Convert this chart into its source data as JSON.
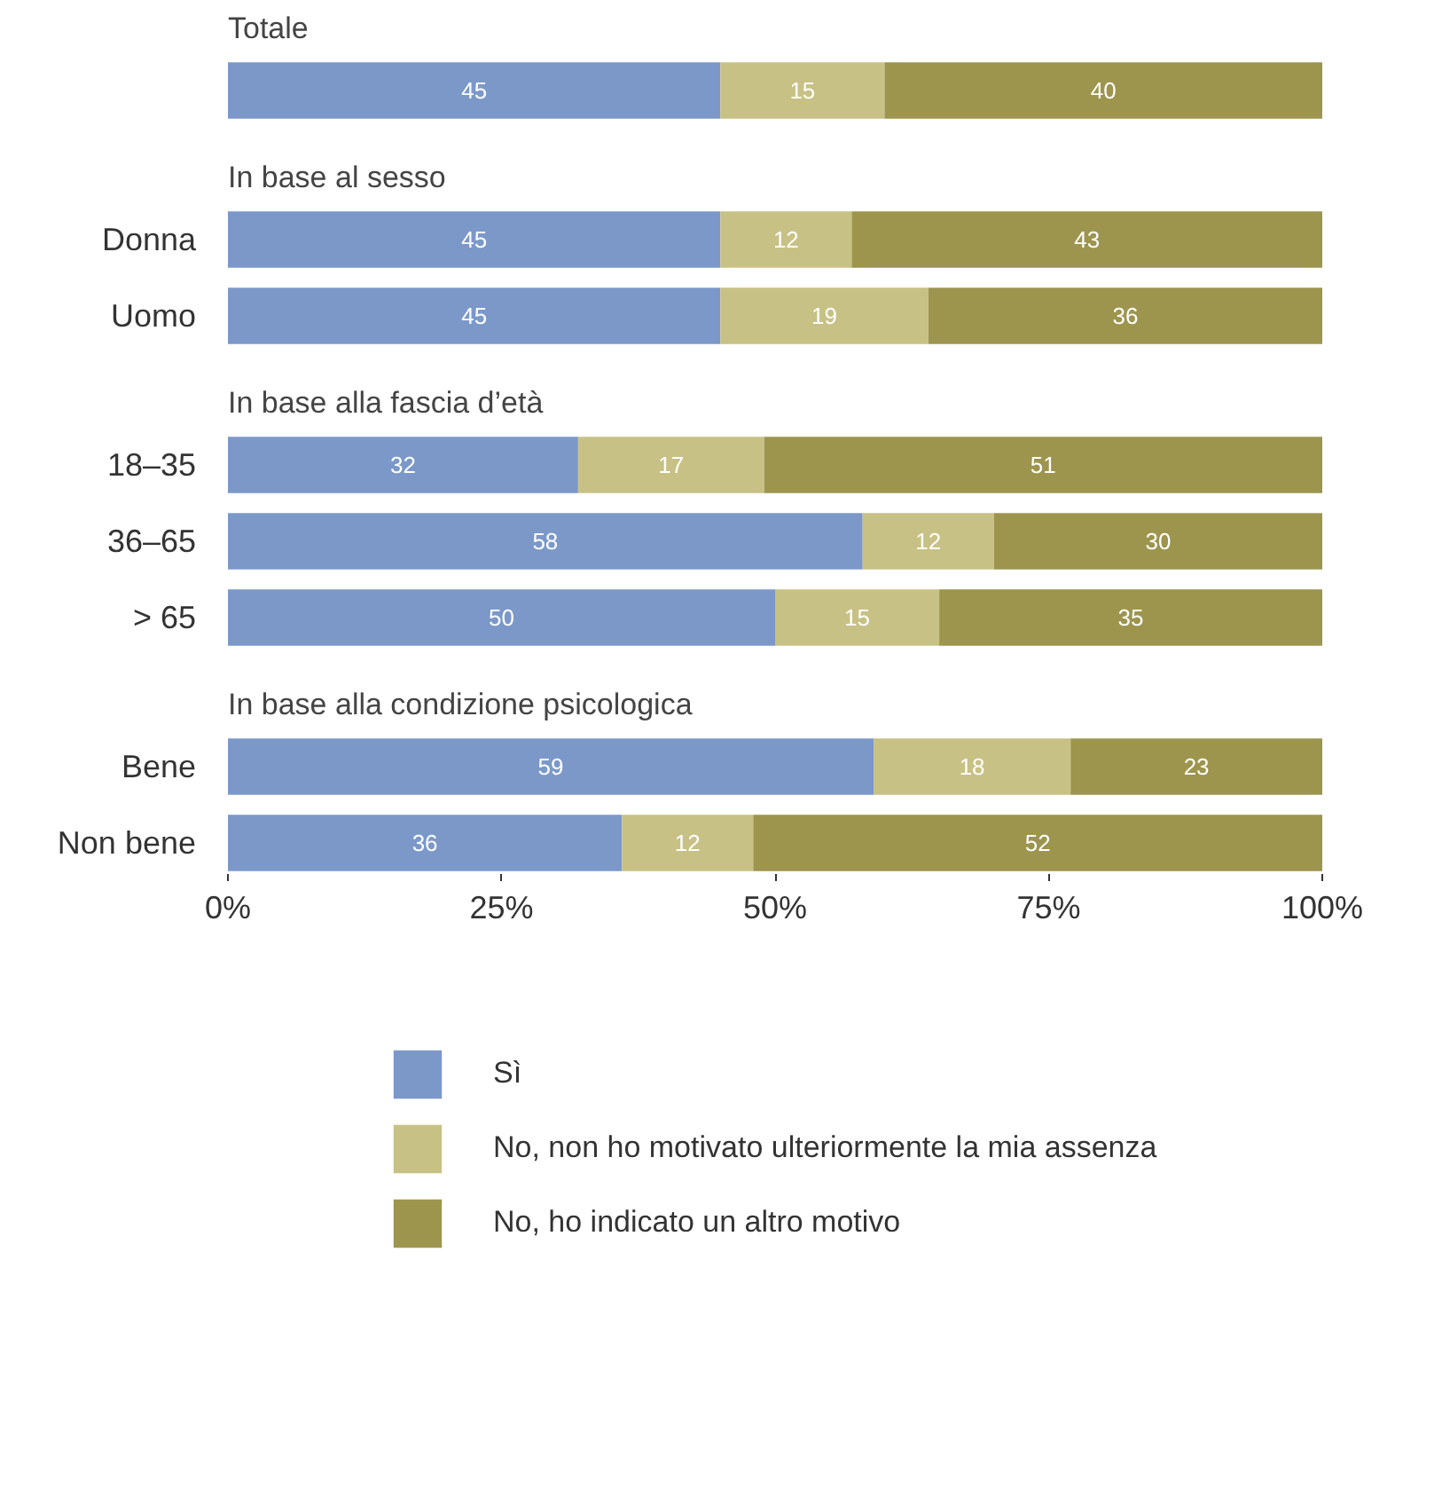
{
  "chart_data": [
    {
      "type": "bar",
      "orientation": "horizontal",
      "stacked": true,
      "title": "Totale",
      "categories": [
        null
      ],
      "series": [
        {
          "color": "#7b98c9",
          "values": [
            45
          ]
        },
        {
          "color": "#c8c185",
          "values": [
            15
          ]
        },
        {
          "color": "#9d954e",
          "values": [
            40
          ]
        }
      ],
      "xlim": [
        0,
        100
      ],
      "tick_labels": "y",
      "data_labels": true
    },
    {
      "type": "bar",
      "orientation": "horizontal",
      "stacked": true,
      "title": "In base al sesso",
      "categories": [
        "Donna",
        "Uomo"
      ],
      "series": [
        {
          "color": "#7b98c9",
          "values": [
            45,
            45
          ]
        },
        {
          "color": "#c8c185",
          "values": [
            12,
            19
          ]
        },
        {
          "color": "#9d954e",
          "values": [
            43,
            36
          ]
        }
      ],
      "xlim": [
        0,
        100
      ],
      "tick_labels": "y",
      "data_labels": true
    },
    {
      "type": "bar",
      "orientation": "horizontal",
      "stacked": true,
      "title": "In base alla fascia d’età",
      "categories": [
        "18–35",
        "36–65",
        "> 65"
      ],
      "series": [
        {
          "color": "#7b98c9",
          "values": [
            32,
            58,
            50
          ]
        },
        {
          "color": "#c8c185",
          "values": [
            17,
            12,
            15
          ]
        },
        {
          "color": "#9d954e",
          "values": [
            51,
            30,
            35
          ]
        }
      ],
      "xlim": [
        0,
        100
      ],
      "tick_labels": "y",
      "data_labels": true
    },
    {
      "type": "bar",
      "orientation": "horizontal",
      "stacked": true,
      "title": "In base alla condizione psicologica",
      "categories": [
        "Bene",
        "Non bene"
      ],
      "series": [
        {
          "name": "Sì",
          "color": "#7b98c9",
          "values": [
            59,
            36
          ]
        },
        {
          "name": "No, non ho motivato ulteriormente la mia assenza",
          "color": "#c8c185",
          "values": [
            18,
            12
          ]
        },
        {
          "name": "No, ho indicato un altro motivo",
          "color": "#9d954e",
          "values": [
            23,
            52
          ]
        }
      ],
      "xlim": [
        0,
        100
      ],
      "xticks": [
        {
          "value": 0,
          "label": "0%"
        },
        {
          "value": 25,
          "label": "25%"
        },
        {
          "value": 50,
          "label": "50%"
        },
        {
          "value": 75,
          "label": "75%"
        },
        {
          "value": 100,
          "label": "100%"
        }
      ],
      "data_labels": true,
      "legend": "bottom"
    }
  ]
}
